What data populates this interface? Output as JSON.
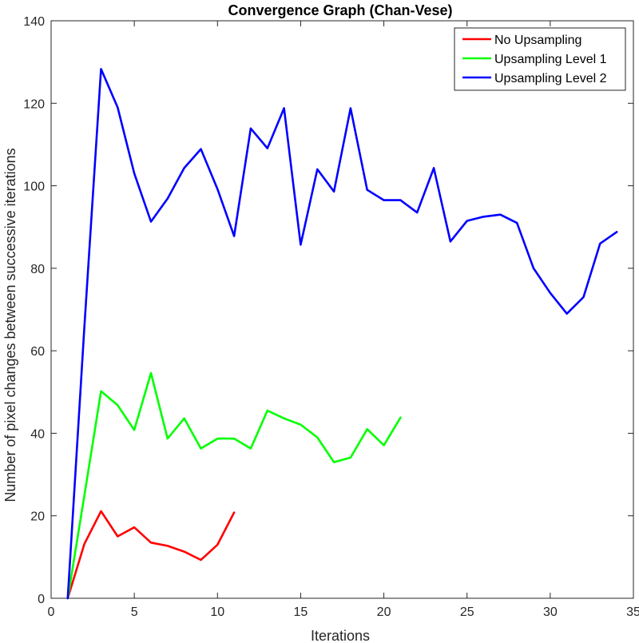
{
  "chart_data": {
    "type": "line",
    "title": "Convergence Graph (Chan-Vese)",
    "xlabel": "Iterations",
    "ylabel": "Number of pixel changes between successive iterations",
    "xlim": [
      0,
      35
    ],
    "ylim": [
      0,
      140
    ],
    "xticks": [
      0,
      5,
      10,
      15,
      20,
      25,
      30,
      35
    ],
    "yticks": [
      0,
      20,
      40,
      60,
      80,
      100,
      120,
      140
    ],
    "grid": false,
    "legend_position": "top-right",
    "series": [
      {
        "name": "No Upsampling",
        "color": "#ff0000",
        "x": [
          1,
          2,
          3,
          4,
          5,
          6,
          7,
          8,
          9,
          10,
          11
        ],
        "y": [
          0,
          13.2,
          21.1,
          15.0,
          17.2,
          13.5,
          12.7,
          11.3,
          9.3,
          13.0,
          20.8
        ]
      },
      {
        "name": "Upsampling Level 1",
        "color": "#00ff00",
        "x": [
          1,
          2,
          3,
          4,
          5,
          6,
          7,
          8,
          9,
          10,
          11,
          12,
          13,
          14,
          15,
          16,
          17,
          18,
          19,
          20,
          21
        ],
        "y": [
          0,
          25.0,
          50.2,
          46.8,
          40.8,
          54.6,
          38.7,
          43.6,
          36.3,
          38.7,
          38.7,
          36.3,
          45.5,
          43.6,
          42.1,
          39.0,
          33.0,
          34.1,
          41.0,
          37.1,
          43.8
        ]
      },
      {
        "name": "Upsampling Level 2",
        "color": "#0000ff",
        "x": [
          1,
          2,
          3,
          4,
          5,
          6,
          7,
          8,
          9,
          10,
          11,
          12,
          13,
          14,
          15,
          16,
          17,
          18,
          19,
          20,
          21,
          22,
          23,
          24,
          25,
          26,
          27,
          28,
          29,
          30,
          31,
          32,
          33,
          34
        ],
        "y": [
          0,
          66.0,
          128.3,
          119.0,
          103.0,
          91.3,
          96.9,
          104.3,
          108.9,
          99.2,
          87.8,
          113.9,
          109.1,
          118.8,
          85.7,
          104.0,
          98.6,
          118.8,
          99.0,
          96.5,
          96.5,
          93.5,
          104.3,
          86.5,
          91.5,
          92.5,
          93.0,
          91.0,
          80.0,
          74.0,
          69.0,
          73.0,
          86.0,
          88.8
        ]
      }
    ]
  }
}
